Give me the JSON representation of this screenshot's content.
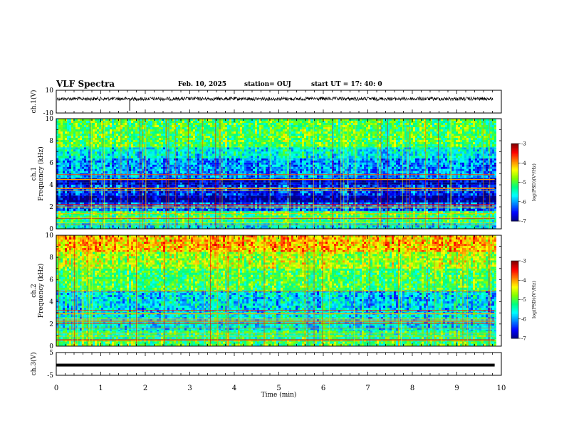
{
  "header": {
    "title": "VLF Spectra",
    "date": "Feb. 10, 2025",
    "station": "station= OUJ",
    "start_ut": "start  UT =   17: 40: 0"
  },
  "chart_data": [
    {
      "type": "line",
      "panel": "ch1-waveform",
      "ylabel": "ch.1(V)",
      "ylim": [
        -10,
        10
      ],
      "y_ticks": [
        "10",
        "-10"
      ],
      "description_level": 2.5,
      "xlim": [
        0,
        10
      ]
    },
    {
      "type": "heatmap",
      "panel": "ch1-spectrogram",
      "ylabel": "ch.1\nFrequency  (kHz)",
      "ylim": [
        0,
        10
      ],
      "y_ticks": [
        "0",
        "2",
        "4",
        "6",
        "8",
        "10"
      ],
      "xlim": [
        0,
        10
      ],
      "data_end_min": 9.85,
      "band_levels": [
        {
          "f0": 0.0,
          "f1": 0.5,
          "level": -5.6
        },
        {
          "f0": 0.5,
          "f1": 1.2,
          "level": -5.2
        },
        {
          "f0": 1.2,
          "f1": 1.6,
          "level": -5.0
        },
        {
          "f0": 1.6,
          "f1": 2.4,
          "level": -6.2
        },
        {
          "f0": 2.4,
          "f1": 3.0,
          "level": -6.9
        },
        {
          "f0": 3.0,
          "f1": 4.0,
          "level": -6.4
        },
        {
          "f0": 4.0,
          "f1": 4.6,
          "level": -6.8
        },
        {
          "f0": 4.6,
          "f1": 6.4,
          "level": -6.0
        },
        {
          "f0": 6.4,
          "f1": 7.4,
          "level": -5.6
        },
        {
          "f0": 7.4,
          "f1": 10.0,
          "level": -5.0
        }
      ],
      "colorbar": {
        "label": "log(PSD)(V²/Hz)",
        "range": [
          -7,
          -3
        ],
        "ticks": [
          "-3",
          "-4",
          "-5",
          "-6",
          "-7"
        ]
      }
    },
    {
      "type": "heatmap",
      "panel": "ch2-spectrogram",
      "ylabel": "ch.2\nFrequency  (kHz)",
      "ylim": [
        0,
        10
      ],
      "y_ticks": [
        "0",
        "2",
        "4",
        "6",
        "8",
        "10"
      ],
      "xlim": [
        0,
        10
      ],
      "data_end_min": 9.85,
      "band_levels": [
        {
          "f0": 0.0,
          "f1": 0.6,
          "level": -5.0
        },
        {
          "f0": 0.6,
          "f1": 1.4,
          "level": -5.2
        },
        {
          "f0": 1.4,
          "f1": 3.0,
          "level": -5.6
        },
        {
          "f0": 3.0,
          "f1": 5.0,
          "level": -5.7
        },
        {
          "f0": 5.0,
          "f1": 7.0,
          "level": -5.0
        },
        {
          "f0": 7.0,
          "f1": 8.5,
          "level": -4.6
        },
        {
          "f0": 8.5,
          "f1": 10.0,
          "level": -4.1
        }
      ],
      "colorbar": {
        "label": "log(PSD)(V²/Hz)",
        "range": [
          -7,
          -3
        ],
        "ticks": [
          "-3",
          "-4",
          "-5",
          "-6",
          "-7"
        ]
      }
    },
    {
      "type": "line",
      "panel": "ch3-waveform",
      "ylabel": "ch.3(V)",
      "ylim": [
        -5,
        5
      ],
      "y_ticks": [
        "5",
        "-5"
      ],
      "level": -0.5,
      "xlim": [
        0,
        10
      ]
    }
  ],
  "xaxis": {
    "label": "Time  (min)",
    "ticks": [
      "0",
      "1",
      "2",
      "3",
      "4",
      "5",
      "6",
      "7",
      "8",
      "9",
      "10"
    ]
  },
  "colors": {
    "scale": [
      "#000080",
      "#0000ff",
      "#0080ff",
      "#00ffff",
      "#00ff80",
      "#80ff00",
      "#ffff00",
      "#ff8000",
      "#ff0000",
      "#800000"
    ]
  }
}
